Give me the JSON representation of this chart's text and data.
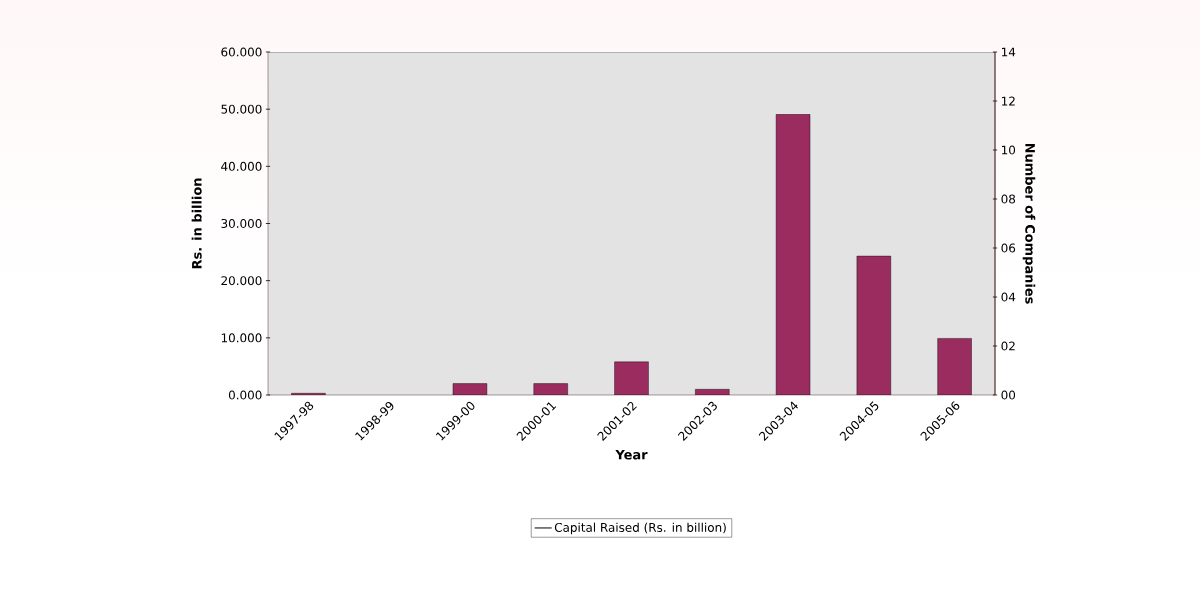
{
  "chart_data": {
    "type": "bar",
    "xlabel": "Year",
    "ylabel": "Rs. in billion",
    "y2label": "Number of Companies",
    "categories": [
      "1997-98",
      "1998-99",
      "1999-00",
      "2000-01",
      "2001-02",
      "2002-03",
      "2003-04",
      "2004-05",
      "2005-06"
    ],
    "series": [
      {
        "name": "Capital Raised  (Rs. in billion)",
        "color": "#9b2c5f",
        "values": [
          0.3,
          null,
          2.0,
          2.0,
          5.8,
          1.0,
          49.1,
          24.3,
          9.9
        ]
      }
    ],
    "ylim": [
      0,
      60
    ],
    "yticks": [
      {
        "value": 0,
        "label": "0.000"
      },
      {
        "value": 10,
        "label": "10.000"
      },
      {
        "value": 20,
        "label": "20.000"
      },
      {
        "value": 30,
        "label": "30.000"
      },
      {
        "value": 40,
        "label": "40.000"
      },
      {
        "value": 50,
        "label": "50.000"
      },
      {
        "value": 60,
        "label": "60.000"
      }
    ],
    "y2lim": [
      0,
      14
    ],
    "y2ticks": [
      {
        "value": 0,
        "label": "00"
      },
      {
        "value": 2,
        "label": "02"
      },
      {
        "value": 4,
        "label": "04"
      },
      {
        "value": 6,
        "label": "06"
      },
      {
        "value": 8,
        "label": "08"
      },
      {
        "value": 10,
        "label": "10"
      },
      {
        "value": 12,
        "label": "12"
      },
      {
        "value": 14,
        "label": "14"
      }
    ],
    "legend": "bottom",
    "grid": false
  }
}
